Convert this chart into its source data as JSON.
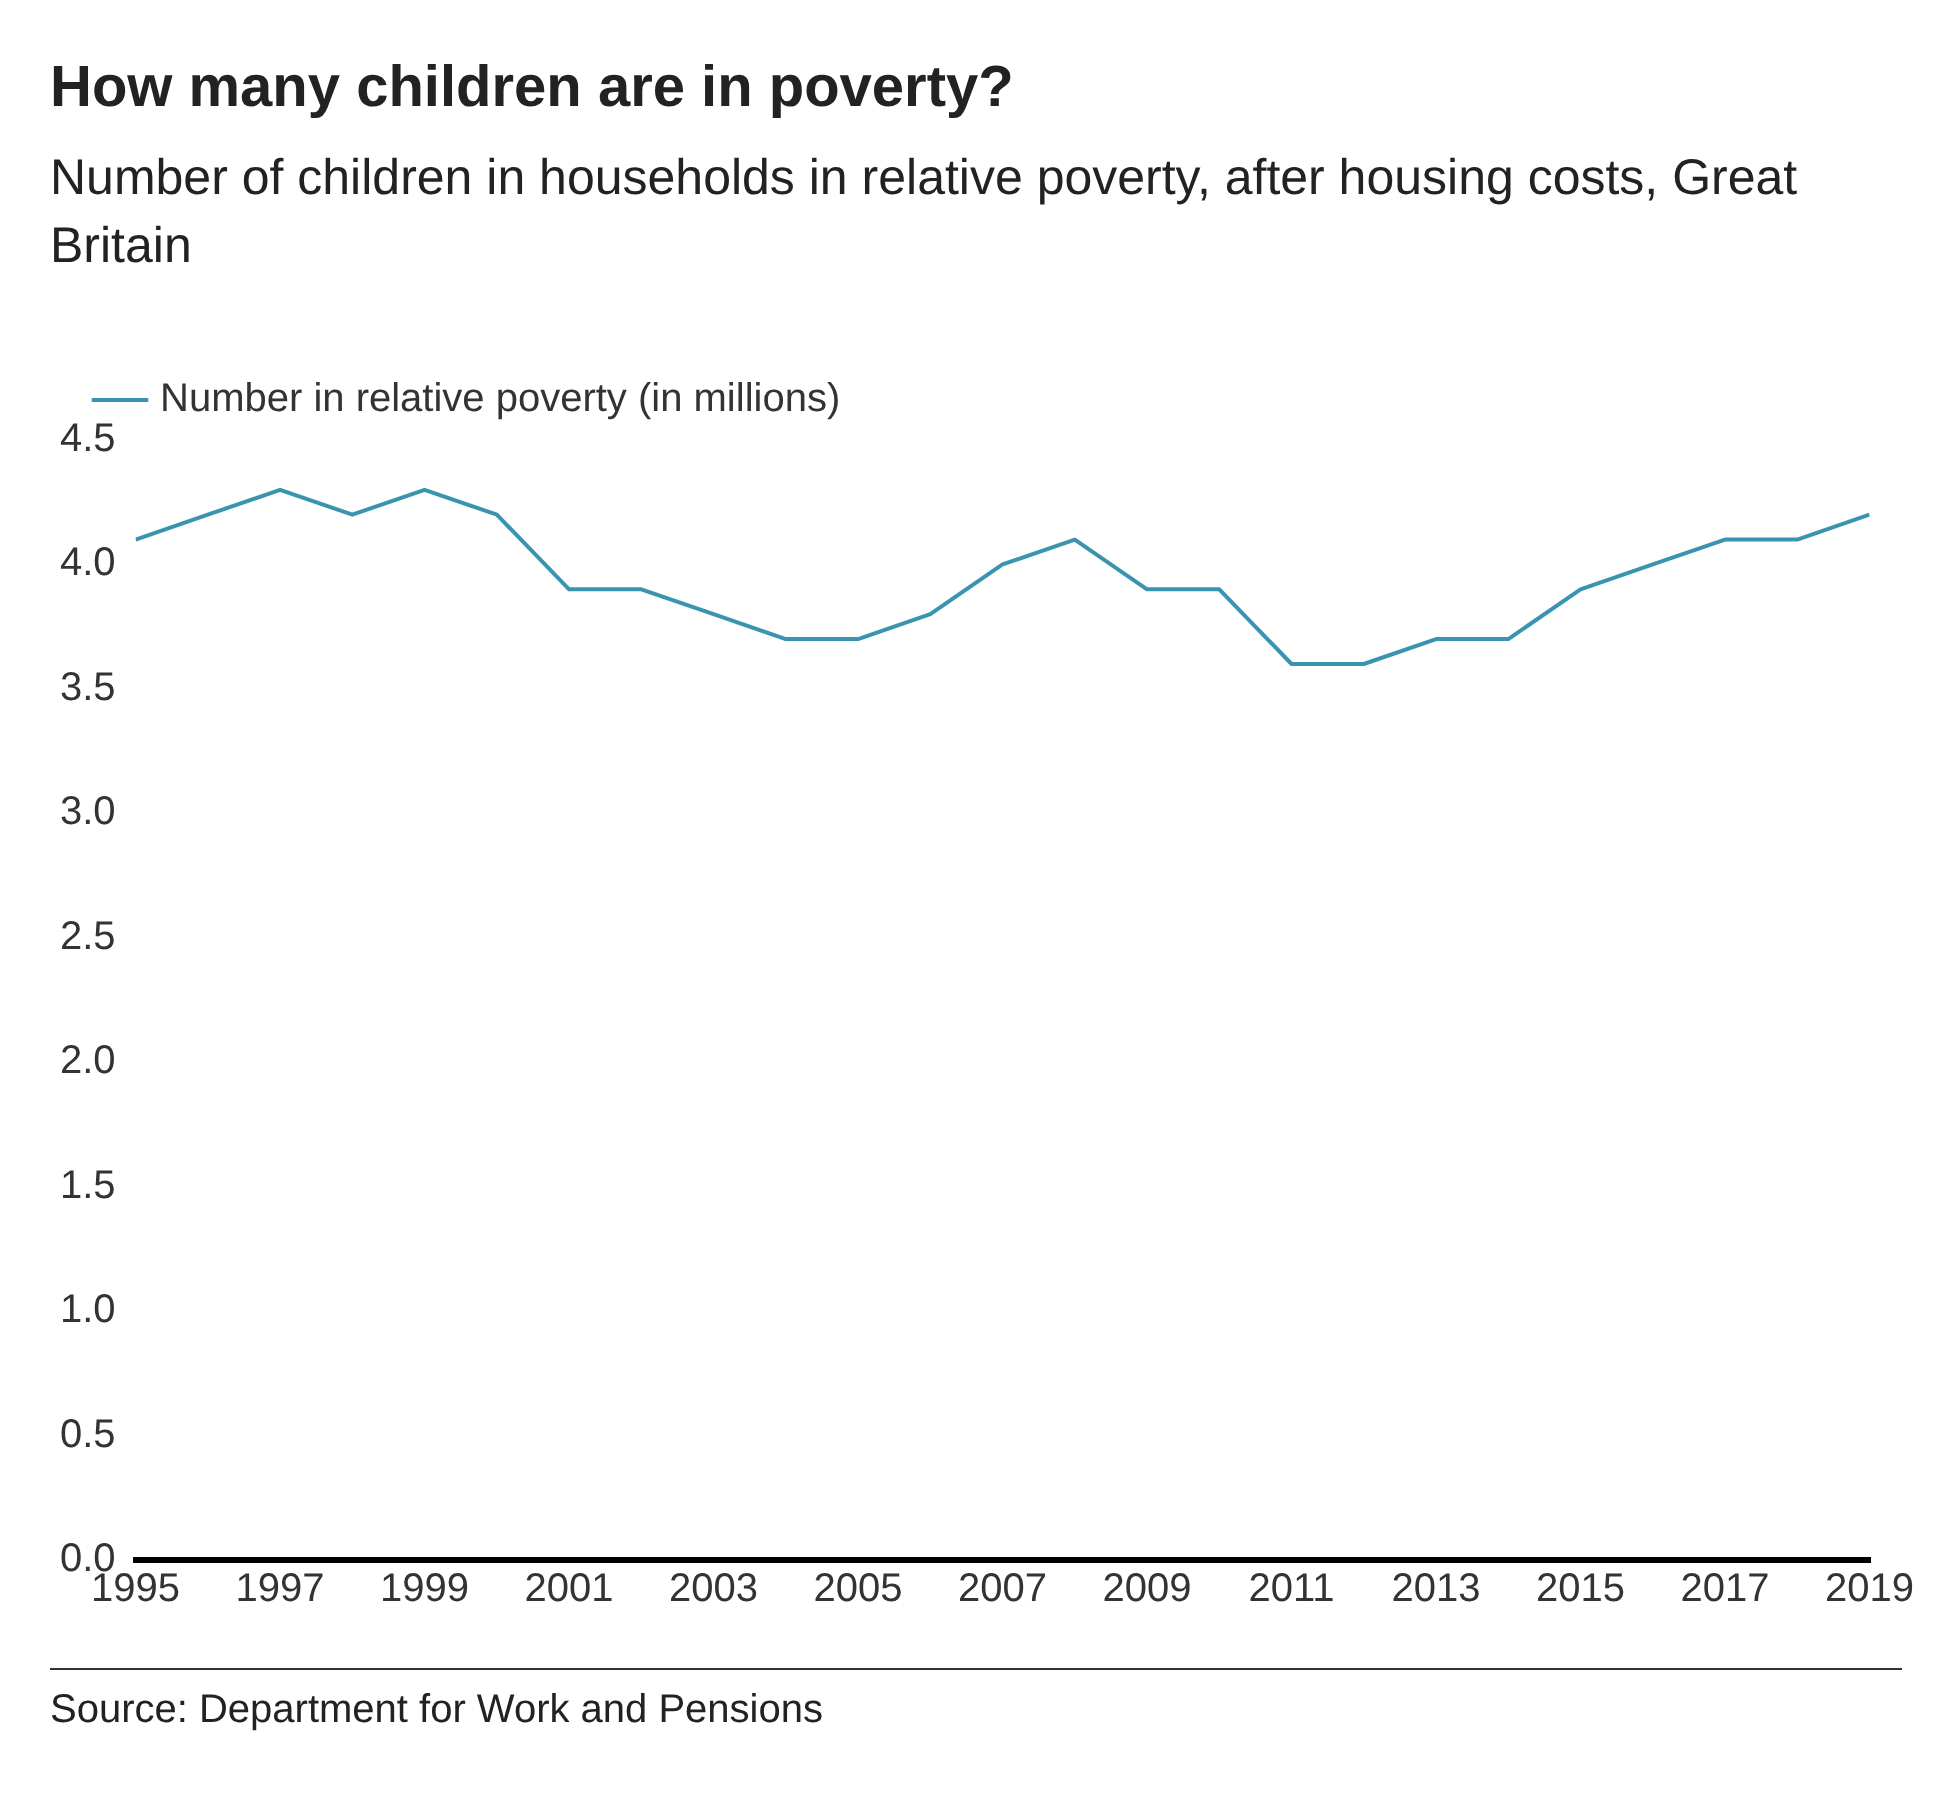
{
  "chart_data": {
    "type": "line",
    "title": "How many children are in poverty?",
    "subtitle": "Number of children in households in relative poverty, after housing costs, Great Britain",
    "x": [
      1995,
      1996,
      1997,
      1998,
      1999,
      2000,
      2001,
      2002,
      2003,
      2004,
      2005,
      2006,
      2007,
      2008,
      2009,
      2010,
      2011,
      2012,
      2013,
      2014,
      2015,
      2016,
      2017,
      2018,
      2019
    ],
    "series": [
      {
        "name": "Number in relative poverty (in millions)",
        "color": "#3a94b0",
        "values": [
          4.1,
          4.2,
          4.3,
          4.2,
          4.3,
          4.2,
          3.9,
          3.9,
          3.8,
          3.7,
          3.7,
          3.8,
          4.0,
          4.1,
          3.9,
          3.9,
          3.6,
          3.6,
          3.7,
          3.7,
          3.9,
          4.0,
          4.1,
          4.1,
          4.2
        ]
      }
    ],
    "xlim": [
      1995,
      2019
    ],
    "xticks": [
      1995,
      1997,
      1999,
      2001,
      2003,
      2005,
      2007,
      2009,
      2011,
      2013,
      2015,
      2017,
      2019
    ],
    "ylim": [
      0,
      4.5
    ],
    "yticks": [
      {
        "value": 0,
        "label": "0.0"
      },
      {
        "value": 0.5,
        "label": "0.5"
      },
      {
        "value": 1,
        "label": "1.0"
      },
      {
        "value": 1.5,
        "label": "1.5"
      },
      {
        "value": 2,
        "label": "2.0"
      },
      {
        "value": 2.5,
        "label": "2.5"
      },
      {
        "value": 3,
        "label": "3.0"
      },
      {
        "value": 3.5,
        "label": "3.5"
      },
      {
        "value": 4,
        "label": "4.0"
      },
      {
        "value": 4.5,
        "label": "4.5"
      }
    ],
    "grid": false,
    "legend": "top left",
    "marker": "none",
    "line_style": "solid",
    "annotations": [
      "Source: Department for Work and Pensions"
    ]
  }
}
